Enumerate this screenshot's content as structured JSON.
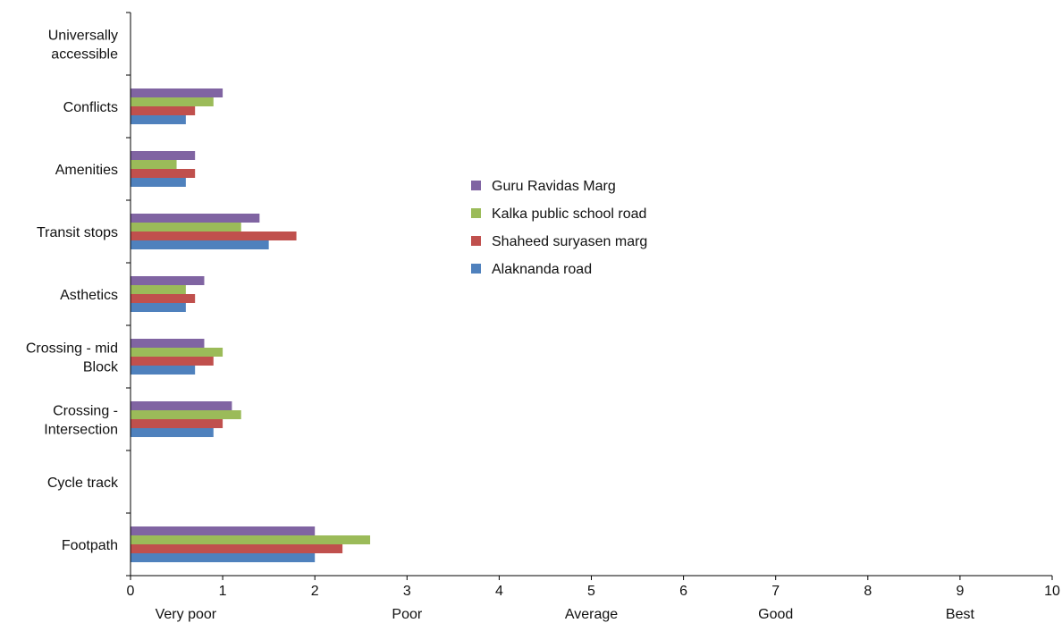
{
  "chart_data": {
    "type": "bar",
    "orientation": "horizontal",
    "categories": [
      "Universally accessible",
      "Conflicts",
      "Amenities",
      "Transit stops",
      "Asthetics",
      "Crossing - mid Block",
      "Crossing - Intersection",
      "Cycle track",
      "Footpath"
    ],
    "series": [
      {
        "name": "Guru Ravidas Marg",
        "color": "#8064a2",
        "values": [
          0,
          1.0,
          0.7,
          1.4,
          0.8,
          0.8,
          1.1,
          0,
          2.0
        ]
      },
      {
        "name": "Kalka public school road",
        "color": "#9bbb59",
        "values": [
          0,
          0.9,
          0.5,
          1.2,
          0.6,
          1.0,
          1.2,
          0,
          2.6
        ]
      },
      {
        "name": "Shaheed suryasen marg",
        "color": "#c0504d",
        "values": [
          0,
          0.7,
          0.7,
          1.8,
          0.7,
          0.9,
          1.0,
          0,
          2.3
        ]
      },
      {
        "name": "Alaknanda road",
        "color": "#4f81bd",
        "values": [
          0,
          0.6,
          0.6,
          1.5,
          0.6,
          0.7,
          0.9,
          0,
          2.0
        ]
      }
    ],
    "xlim": [
      0,
      10
    ],
    "x_ticks": [
      "0",
      "1",
      "2",
      "3",
      "4",
      "5",
      "6",
      "7",
      "8",
      "9",
      "10"
    ],
    "x_qualitative_labels": [
      {
        "at": 0.6,
        "text": "Very poor"
      },
      {
        "at": 3.0,
        "text": "Poor"
      },
      {
        "at": 5.0,
        "text": "Average"
      },
      {
        "at": 7.0,
        "text": "Good"
      },
      {
        "at": 9.0,
        "text": "Best"
      }
    ],
    "grid": false,
    "legend_position": "center-right"
  }
}
